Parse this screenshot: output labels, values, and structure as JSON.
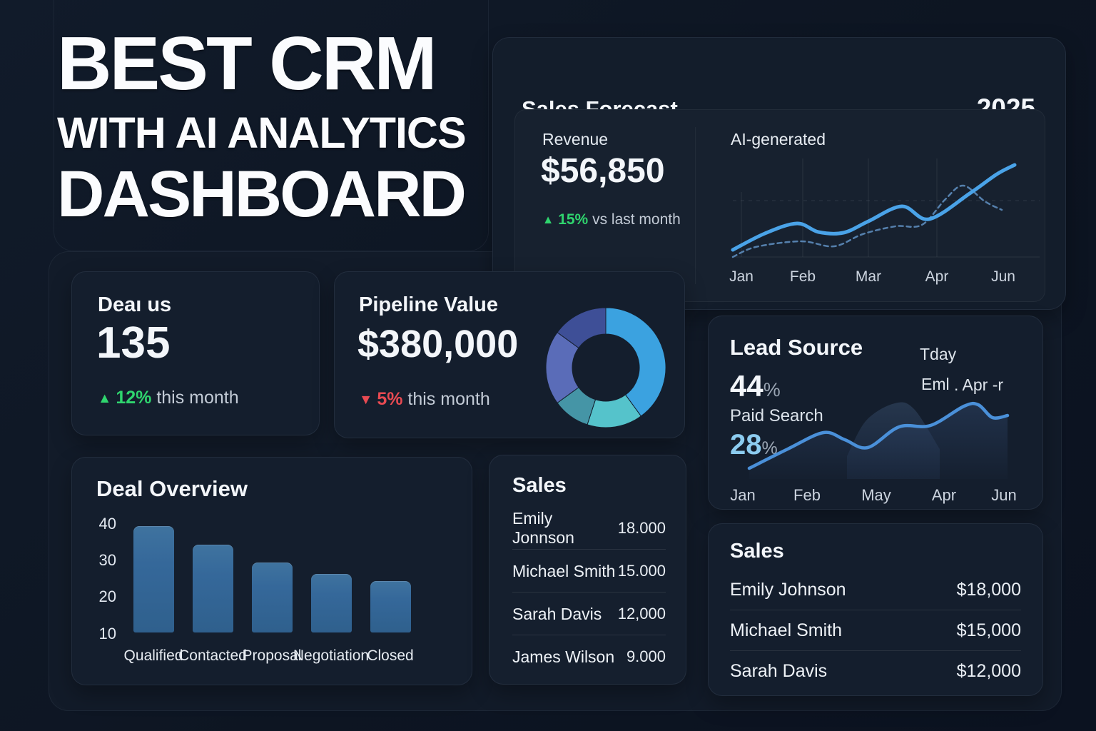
{
  "hero": {
    "title_lines": [
      "BEST CRM",
      "WITH AI ANALYTICS",
      "DASHBOARD"
    ]
  },
  "colors": {
    "background": "#0d1522",
    "card": "#141e2d",
    "accent_line_blue": "#4aa3e8",
    "dashed_blue": "#5580ad",
    "bar_blue": "#35689a",
    "green_up": "#2fd56e",
    "red_down": "#e84a52",
    "light_blue_pct": "#8cccf0"
  },
  "cards": {
    "forecast": {
      "title": "Sales Forecast",
      "year": "2025",
      "revenue_label": "Revenue",
      "revenue_value": "$56,850",
      "delta_icon": "▲",
      "delta_pct": "15%",
      "delta_suffix": "vs last month",
      "ai_label": "AI-generated"
    },
    "deal_status": {
      "title": "Deaı us",
      "value": "135",
      "delta_icon": "▲",
      "delta_pct": "12%",
      "delta_suffix": "this month"
    },
    "pipeline": {
      "title": "Pipeline Value",
      "value": "$380,000",
      "delta_icon": "▼",
      "delta_pct": "5%",
      "delta_suffix": "this month"
    },
    "lead_source": {
      "title": "Lead Source",
      "pct1": "44",
      "pct1_sign": "%",
      "label1": "Paid Search",
      "pct2": "28",
      "pct2_sign": "%",
      "legend": [
        "Tday",
        "Eml",
        ". Apr -r"
      ]
    },
    "deal_overview": {
      "title": "Deal Overview"
    },
    "sales_list": {
      "title": "Sales",
      "rows": [
        {
          "name": "Emily Jonnson",
          "value": "18.000"
        },
        {
          "name": "Michael Smith",
          "value": "15.000"
        },
        {
          "name": "Sarah Davis",
          "value": "12,000"
        },
        {
          "name": "James Wilson",
          "value": "9.000"
        }
      ]
    },
    "sales_list_right": {
      "title": "Sales",
      "rows": [
        {
          "name": "Emily Johnson",
          "value": "$18,000"
        },
        {
          "name": "Michael Smith",
          "value": "$15,000"
        },
        {
          "name": "Sarah Davis",
          "value": "$12,000"
        }
      ]
    }
  },
  "chart_data": [
    {
      "id": "sales_forecast",
      "type": "line",
      "title": "Sales Forecast",
      "subtitle": "AI-generated",
      "categories": [
        "Jan",
        "Feb",
        "Mar",
        "Apr",
        "Jun"
      ],
      "size": [
        440,
        150
      ],
      "series": [
        {
          "name": "actual",
          "style": "solid",
          "points": [
            [
              5,
              136
            ],
            [
              50,
              113
            ],
            [
              95,
              99
            ],
            [
              125,
              111
            ],
            [
              160,
              112
            ],
            [
              195,
              96
            ],
            [
              242,
              75
            ],
            [
              280,
              93
            ],
            [
              337,
              57
            ],
            [
              375,
              30
            ],
            [
              400,
              17
            ]
          ]
        },
        {
          "name": "ai-forecast",
          "style": "dashed",
          "points": [
            [
              5,
              146
            ],
            [
              37,
              132
            ],
            [
              100,
              124
            ],
            [
              147,
              131
            ],
            [
              187,
              114
            ],
            [
              233,
              103
            ],
            [
              270,
              101
            ],
            [
              303,
              65
            ],
            [
              328,
              46
            ],
            [
              358,
              68
            ],
            [
              382,
              80
            ]
          ]
        }
      ]
    },
    {
      "id": "lead_source",
      "type": "area",
      "categories": [
        "Jan",
        "Feb",
        "May",
        "Apr",
        "Jun"
      ],
      "size": [
        420,
        130
      ],
      "series": [
        {
          "name": "leads",
          "points": [
            [
              31,
              115
            ],
            [
              85,
              88
            ],
            [
              135,
              65
            ],
            [
              165,
              75
            ],
            [
              197,
              86
            ],
            [
              241,
              57
            ],
            [
              285,
              55
            ],
            [
              332,
              28
            ],
            [
              352,
              26
            ],
            [
              372,
              44
            ],
            [
              393,
              41
            ]
          ]
        }
      ],
      "mountain": [
        [
          168,
          98
        ],
        [
          195,
          48
        ],
        [
          235,
          24
        ],
        [
          262,
          32
        ],
        [
          298,
          88
        ]
      ]
    },
    {
      "id": "deal_overview",
      "type": "bar",
      "title": "Deal Overview",
      "categories": [
        "Qualified",
        "Contacted",
        "Proposal",
        "Negotiation",
        "Closed"
      ],
      "values": [
        39,
        34,
        29,
        26,
        24
      ],
      "ylim": [
        10,
        40
      ],
      "yticks": [
        40,
        30,
        20,
        10
      ]
    },
    {
      "id": "pipeline_donut",
      "type": "pie",
      "values": [
        40,
        15,
        10,
        20,
        15
      ],
      "colors": [
        "#3ba2e0",
        "#55c3cb",
        "#4595a6",
        "#5a6cb8",
        "#3e4f97"
      ]
    }
  ]
}
